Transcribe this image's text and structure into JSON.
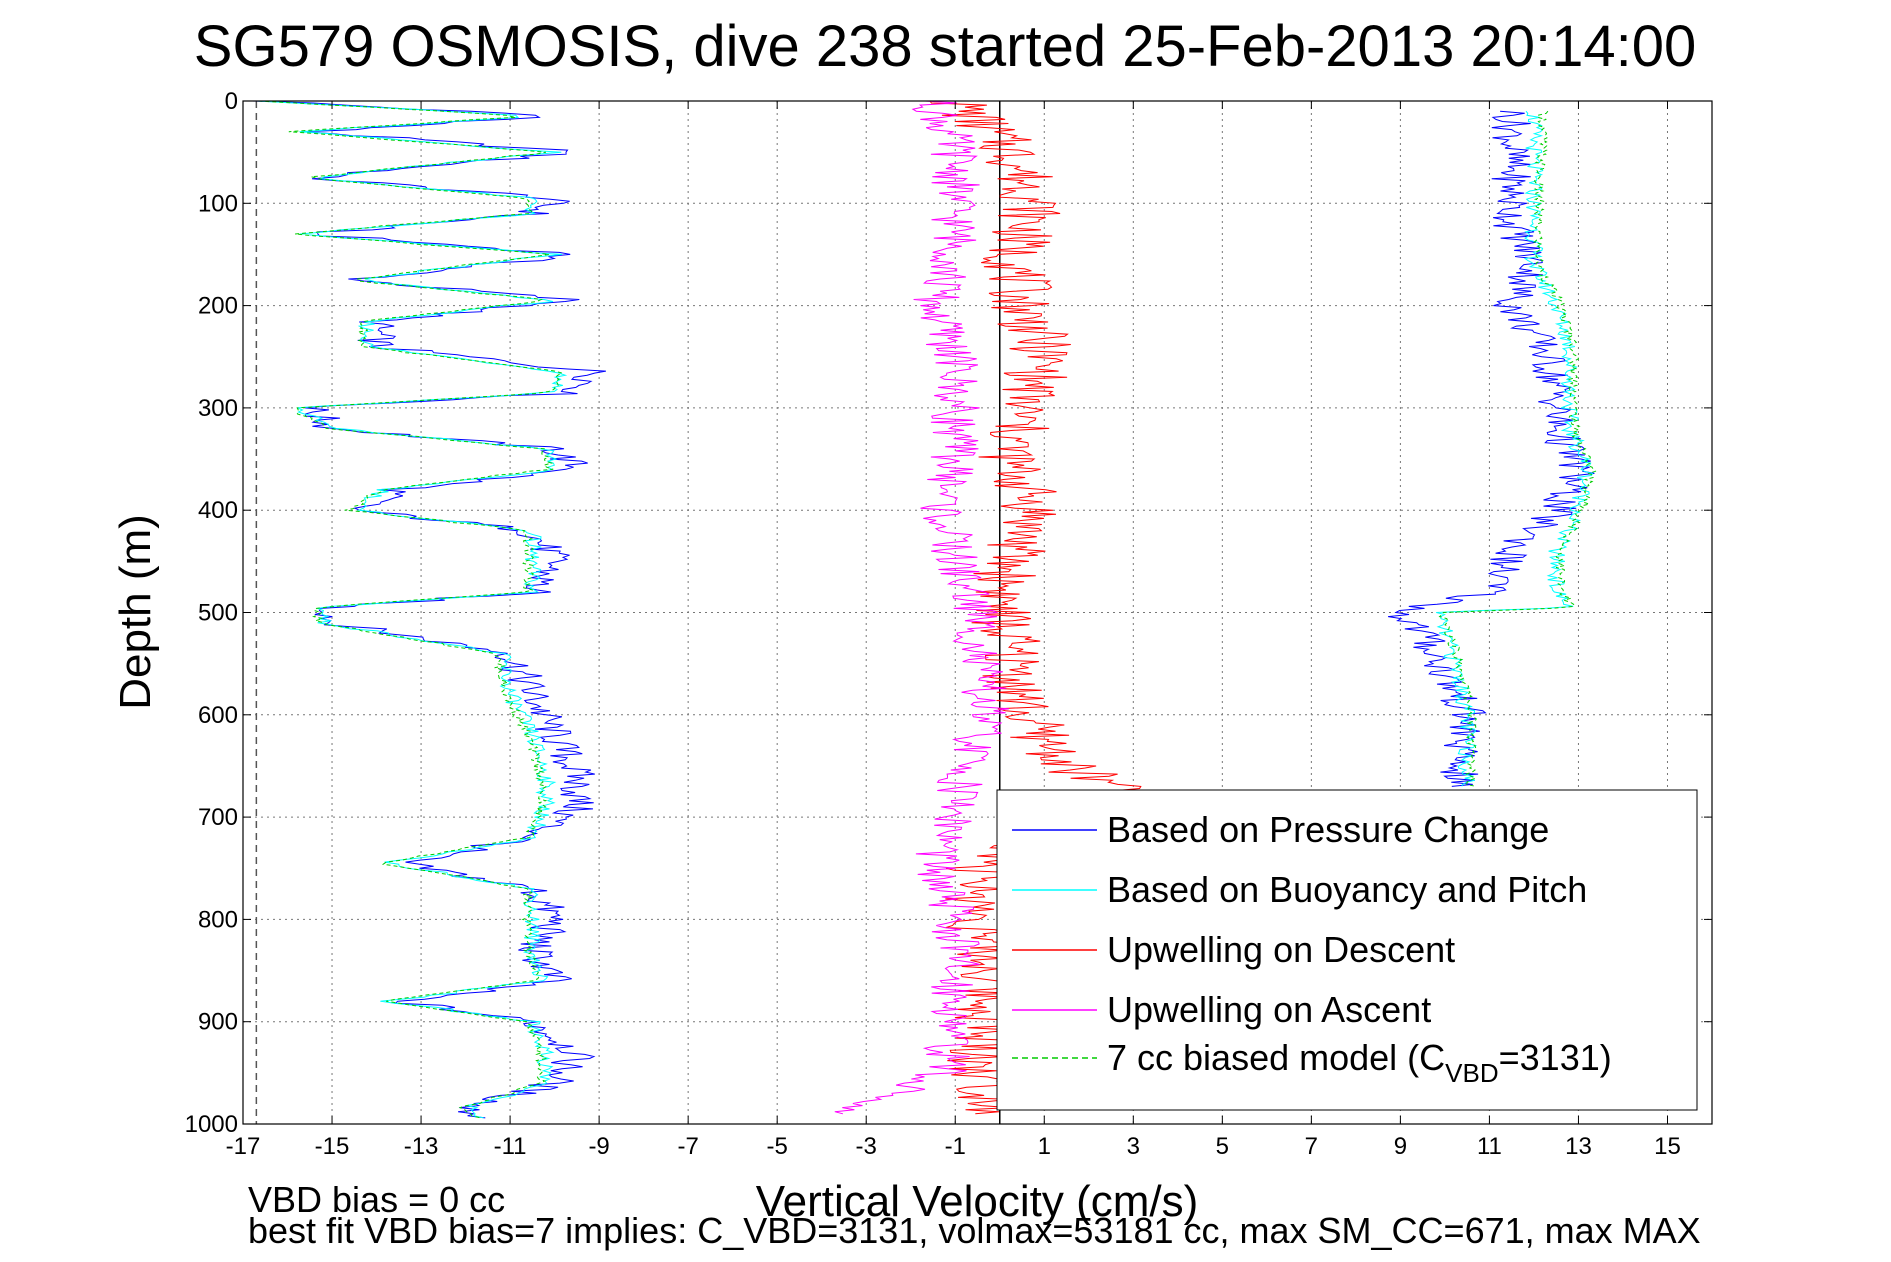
{
  "chart_data": {
    "type": "line",
    "title": "SG579 OSMOSIS, dive 238 started 25-Feb-2013 20:14:00",
    "xlabel": "Vertical Velocity (cm/s)",
    "ylabel": "Depth (m)",
    "xlim": [
      -17,
      16
    ],
    "ylim": [
      0,
      1000
    ],
    "y_reversed": true,
    "x_ticks": [
      "-17",
      "-15",
      "-13",
      "-11",
      "-9",
      "-7",
      "-5",
      "-3",
      "-1",
      "1",
      "3",
      "5",
      "7",
      "9",
      "11",
      "13",
      "15"
    ],
    "y_ticks": [
      "0",
      "100",
      "200",
      "300",
      "400",
      "500",
      "600",
      "700",
      "800",
      "900",
      "1000"
    ],
    "grid": true,
    "legend_position": "bottom-right",
    "legend": [
      {
        "label": "Based on Pressure Change",
        "color": "#0000ff",
        "dashed": false
      },
      {
        "label": "Based on Buoyancy and Pitch",
        "color": "#00ffff",
        "dashed": false
      },
      {
        "label": "Upwelling on Descent",
        "color": "#ff0000",
        "dashed": false
      },
      {
        "label": "Upwelling on Ascent",
        "color": "#ff00ff",
        "dashed": false
      },
      {
        "label": "7 cc biased model (C",
        "sub": "VBD",
        "suffix": "=3131)",
        "color": "#00cc00",
        "dashed": true
      }
    ],
    "reference_lines": [
      {
        "x": 0,
        "color": "#000000",
        "dashed": false
      },
      {
        "x": -16.7,
        "color": "#555555",
        "dashed": true
      }
    ],
    "series": [
      {
        "name": "Based on Pressure Change (descent)",
        "color": "#0000ff",
        "depth": [
          0,
          15,
          30,
          50,
          75,
          95,
          110,
          130,
          150,
          175,
          195,
          215,
          240,
          265,
          285,
          300,
          320,
          340,
          360,
          380,
          400,
          420,
          450,
          480,
          495,
          510,
          540,
          580,
          620,
          660,
          690,
          720,
          745,
          770,
          800,
          830,
          860,
          880,
          900,
          930,
          960,
          985,
          995
        ],
        "v": [
          -16.5,
          -10,
          -15.5,
          -9.5,
          -15.5,
          -10,
          -10.5,
          -15.5,
          -9.5,
          -14.5,
          -9.5,
          -14,
          -14,
          -9,
          -9.5,
          -15.5,
          -15,
          -10,
          -9.5,
          -13.5,
          -14.5,
          -10.5,
          -10,
          -10.5,
          -15,
          -15,
          -11,
          -10.5,
          -10,
          -9.5,
          -9.5,
          -10.5,
          -13.5,
          -10.5,
          -10,
          -10.5,
          -10,
          -13.5,
          -10.5,
          -9.5,
          -10,
          -12,
          -11.5
        ]
      },
      {
        "name": "Based on Buoyancy and Pitch (descent)",
        "color": "#00ffff",
        "depth": [
          0,
          15,
          30,
          50,
          75,
          95,
          110,
          130,
          150,
          175,
          195,
          215,
          240,
          265,
          285,
          300,
          320,
          340,
          360,
          380,
          400,
          420,
          450,
          480,
          495,
          510,
          540,
          580,
          620,
          660,
          690,
          720,
          745,
          770,
          800,
          830,
          860,
          880,
          900,
          930,
          960,
          985,
          995
        ],
        "v": [
          -16.5,
          -10.5,
          -15.8,
          -10,
          -15.5,
          -10.5,
          -10.5,
          -15.8,
          -10,
          -14.5,
          -10,
          -14.2,
          -14.2,
          -9.8,
          -10,
          -15.8,
          -15,
          -10.2,
          -10,
          -13.8,
          -14.5,
          -10.5,
          -10.5,
          -10.5,
          -15.2,
          -15.2,
          -11.2,
          -11,
          -10.5,
          -10.2,
          -10.2,
          -10.5,
          -13.8,
          -10.5,
          -10.5,
          -10.5,
          -10.3,
          -13.8,
          -10.5,
          -10.2,
          -10.2,
          -12,
          -11.5
        ]
      },
      {
        "name": "7 cc biased model (descent)",
        "color": "#00cc00",
        "depth": [
          0,
          15,
          30,
          50,
          75,
          95,
          110,
          130,
          150,
          175,
          195,
          215,
          240,
          265,
          285,
          300,
          320,
          340,
          360,
          380,
          400,
          420,
          450,
          480,
          495,
          510,
          540,
          580,
          620,
          660,
          690,
          720,
          745,
          770,
          800,
          830,
          860,
          880,
          900,
          930,
          960,
          985,
          995
        ],
        "v": [
          -16.6,
          -10.6,
          -15.9,
          -10.1,
          -15.6,
          -10.6,
          -10.6,
          -15.9,
          -10.1,
          -14.6,
          -10.1,
          -14.3,
          -14.3,
          -9.9,
          -10.1,
          -15.9,
          -15.1,
          -10.3,
          -10.1,
          -13.9,
          -14.6,
          -10.6,
          -10.6,
          -10.6,
          -15.3,
          -15.3,
          -11.3,
          -11.1,
          -10.6,
          -10.3,
          -10.3,
          -10.6,
          -13.9,
          -10.6,
          -10.6,
          -10.6,
          -10.4,
          -13.9,
          -10.6,
          -10.3,
          -10.3,
          -12.1,
          -11.6
        ]
      },
      {
        "name": "Based on Pressure Change (ascent)",
        "color": "#0000ff",
        "depth": [
          10,
          40,
          80,
          120,
          160,
          200,
          240,
          280,
          320,
          360,
          400,
          440,
          480,
          500,
          520,
          560,
          600,
          640,
          670
        ],
        "v": [
          11.5,
          11.5,
          11.5,
          11.5,
          12,
          11.5,
          12.2,
          12.5,
          12.5,
          13,
          12.5,
          11.5,
          11,
          9,
          9.5,
          10,
          10.5,
          10.3,
          10.3
        ]
      },
      {
        "name": "Based on Buoyancy and Pitch (ascent)",
        "color": "#00ffff",
        "depth": [
          10,
          40,
          80,
          120,
          160,
          200,
          240,
          280,
          320,
          360,
          400,
          440,
          480,
          495,
          500,
          520,
          560,
          600,
          640,
          670
        ],
        "v": [
          12,
          12,
          12,
          12,
          12,
          12.5,
          12.8,
          12.8,
          12.8,
          13.2,
          13,
          12.5,
          12.5,
          12.8,
          9.8,
          10,
          10.3,
          10.5,
          10.5,
          10.5
        ]
      },
      {
        "name": "7 cc biased model (ascent)",
        "color": "#00cc00",
        "depth": [
          10,
          40,
          80,
          120,
          160,
          200,
          240,
          280,
          320,
          360,
          400,
          440,
          480,
          495,
          500,
          520,
          560,
          600,
          640,
          670
        ],
        "v": [
          12.2,
          12.2,
          12.1,
          12.1,
          12.1,
          12.6,
          12.9,
          12.9,
          12.9,
          13.3,
          13.1,
          12.6,
          12.6,
          12.9,
          9.9,
          10.1,
          10.4,
          10.6,
          10.6,
          10.6
        ]
      },
      {
        "name": "Upwelling on Descent",
        "color": "#ff0000",
        "depth": [
          0,
          50,
          100,
          150,
          200,
          250,
          300,
          350,
          400,
          450,
          500,
          550,
          600,
          650,
          680,
          750,
          800,
          850,
          900,
          950,
          990
        ],
        "v": [
          -1,
          0.3,
          0.8,
          0.3,
          0.5,
          1,
          0.5,
          0.2,
          0.8,
          0.2,
          0,
          0.3,
          0.5,
          1.5,
          3,
          -0.5,
          -0.5,
          -0.3,
          -0.3,
          -0.5,
          0
        ]
      },
      {
        "name": "Upwelling on Ascent",
        "color": "#ff00ff",
        "depth": [
          0,
          50,
          100,
          150,
          200,
          250,
          300,
          350,
          400,
          450,
          500,
          550,
          600,
          650,
          700,
          750,
          800,
          850,
          900,
          950,
          990
        ],
        "v": [
          -1.5,
          -1,
          -1,
          -1,
          -1.5,
          -1,
          -1,
          -1,
          -1.3,
          -1,
          -0.5,
          -0.5,
          -0.3,
          -0.8,
          -1,
          -1.5,
          -1,
          -1,
          -1,
          -1.3,
          -3.5
        ]
      }
    ],
    "footer_lines": [
      "VBD bias = 0 cc",
      "best fit VBD bias=7 implies: C_VBD=3131, volmax=53181 cc, max SM_CC=671, max MAX"
    ]
  }
}
